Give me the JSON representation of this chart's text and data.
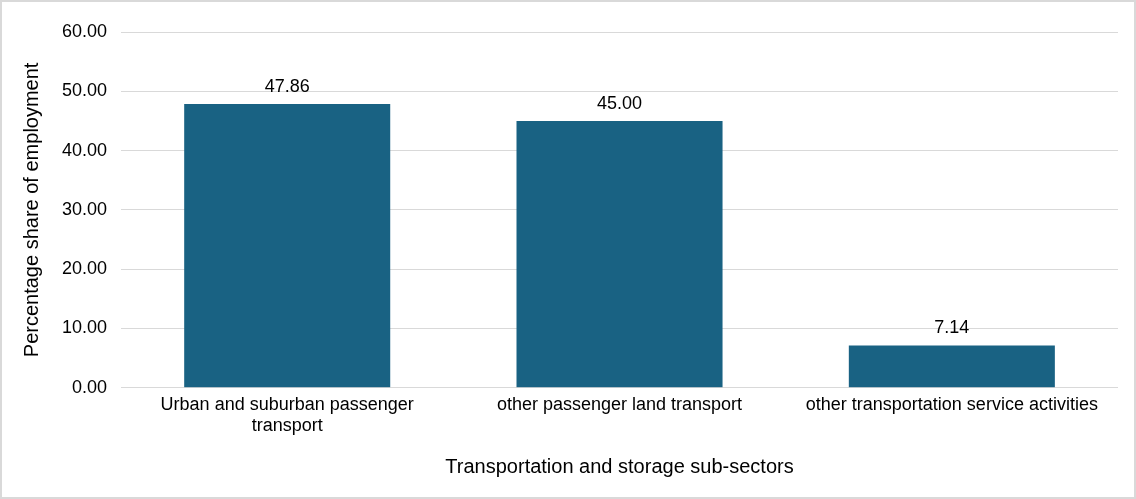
{
  "chart_data": {
    "type": "bar",
    "xlabel": "Transportation and storage sub-sectors",
    "ylabel": "Percentage share of employment",
    "categories": [
      "Urban and suburban passenger transport",
      "other passenger land transport",
      "other transportation service activities"
    ],
    "values": [
      47.86,
      45.0,
      7.14
    ],
    "value_labels": [
      "47.86",
      "45.00",
      "7.14"
    ],
    "color": "#196283",
    "ylim": [
      0,
      60
    ],
    "yticks": [
      {
        "value": 0,
        "label": "0.00"
      },
      {
        "value": 10,
        "label": "10.00"
      },
      {
        "value": 20,
        "label": "20.00"
      },
      {
        "value": 30,
        "label": "30.00"
      },
      {
        "value": 40,
        "label": "40.00"
      },
      {
        "value": 50,
        "label": "50.00"
      },
      {
        "value": 60,
        "label": "60.00"
      }
    ],
    "grid": "y",
    "legend": false
  }
}
